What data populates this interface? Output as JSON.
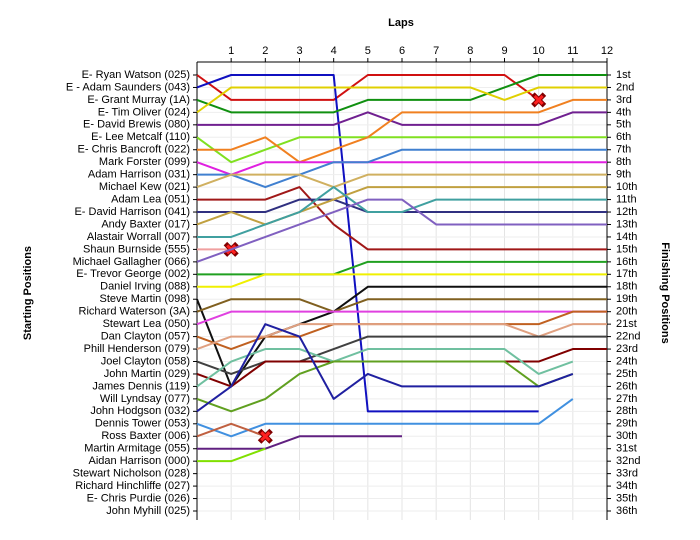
{
  "chart_data": {
    "type": "line",
    "x_label": "Laps",
    "y_label": "Starting Positions",
    "y2_label": "Finishing Positions",
    "x": [
      0,
      1,
      2,
      3,
      4,
      5,
      6,
      7,
      8,
      9,
      10,
      11,
      12
    ],
    "xlim": [
      0,
      12
    ],
    "xticks": [
      1,
      2,
      3,
      4,
      5,
      6,
      7,
      8,
      9,
      10,
      11,
      12
    ],
    "ylim": [
      1,
      36
    ],
    "grid": true,
    "finishing_positions": [
      "1st",
      "2nd",
      "3rd",
      "4th",
      "5th",
      "6th",
      "7th",
      "8th",
      "9th",
      "10th",
      "11th",
      "12th",
      "13th",
      "14th",
      "15th",
      "16th",
      "17th",
      "18th",
      "19th",
      "20th",
      "21st",
      "22nd",
      "23rd",
      "24th",
      "25th",
      "26th",
      "27th",
      "28th",
      "29th",
      "30th",
      "31st",
      "32nd",
      "33rd",
      "34th",
      "35th",
      "36th"
    ],
    "series": [
      {
        "name": "E- Ryan Watson (025)",
        "color": "#d01010",
        "retired": true,
        "values": [
          1,
          3,
          3,
          3,
          3,
          1,
          1,
          1,
          1,
          1,
          3,
          null,
          null
        ]
      },
      {
        "name": "E - Adam Saunders (043)",
        "color": "#1010c0",
        "values": [
          2,
          1,
          1,
          1,
          1,
          28,
          28,
          28,
          28,
          28,
          28,
          null,
          null
        ]
      },
      {
        "name": "E- Grant Murray (1A)",
        "color": "#109010",
        "values": [
          3,
          4,
          4,
          4,
          4,
          3,
          3,
          3,
          3,
          2,
          1,
          1,
          1
        ]
      },
      {
        "name": "E- Tim Oliver (024)",
        "color": "#e0d000",
        "values": [
          4,
          2,
          2,
          2,
          2,
          2,
          2,
          2,
          2,
          3,
          2,
          2,
          2
        ]
      },
      {
        "name": "E- David Brewis (080)",
        "color": "#702090",
        "values": [
          5,
          5,
          5,
          5,
          5,
          4,
          5,
          5,
          5,
          5,
          5,
          4,
          4
        ]
      },
      {
        "name": "E- Lee Metcalf (110)",
        "color": "#80e020",
        "values": [
          6,
          8,
          7,
          6,
          6,
          6,
          6,
          6,
          6,
          6,
          6,
          6,
          6
        ]
      },
      {
        "name": "E- Chris Bancroft (022)",
        "color": "#f08020",
        "values": [
          7,
          7,
          6,
          8,
          7,
          6,
          4,
          4,
          4,
          4,
          4,
          3,
          3
        ]
      },
      {
        "name": "Mark Forster (099)",
        "color": "#e020e0",
        "values": [
          8,
          9,
          8,
          8,
          8,
          8,
          8,
          8,
          8,
          8,
          8,
          8,
          8
        ]
      },
      {
        "name": "Adam Harrison (031)",
        "color": "#4080d0",
        "values": [
          9,
          9,
          10,
          9,
          8,
          8,
          7,
          7,
          7,
          7,
          7,
          7,
          7
        ]
      },
      {
        "name": "Michael Kew (021)",
        "color": "#d0b060",
        "values": [
          10,
          9,
          9,
          9,
          10,
          9,
          9,
          9,
          9,
          9,
          9,
          9,
          9
        ]
      },
      {
        "name": "Adam Lea (051)",
        "color": "#a01818",
        "values": [
          11,
          11,
          11,
          10,
          13,
          15,
          15,
          15,
          15,
          15,
          15,
          15,
          15
        ]
      },
      {
        "name": "E- David Harrison (041)",
        "color": "#303080",
        "values": [
          12,
          12,
          12,
          11,
          11,
          12,
          12,
          12,
          12,
          12,
          12,
          12,
          12
        ]
      },
      {
        "name": "Andy Baxter (017)",
        "color": "#c0a040",
        "values": [
          13,
          12,
          13,
          12,
          11,
          10,
          10,
          10,
          10,
          10,
          10,
          10,
          10
        ]
      },
      {
        "name": "Alastair Worrall (007)",
        "color": "#40a0a0",
        "values": [
          14,
          14,
          13,
          12,
          10,
          12,
          12,
          11,
          11,
          11,
          11,
          11,
          11
        ]
      },
      {
        "name": "Shaun Burnside (555)",
        "color": "#f0a0a0",
        "retired": true,
        "values": [
          15,
          15,
          null,
          null,
          null,
          null,
          null,
          null,
          null,
          null,
          null,
          null,
          null
        ]
      },
      {
        "name": "Michael Gallagher (066)",
        "color": "#8060c0",
        "values": [
          16,
          15,
          14,
          13,
          12,
          11,
          11,
          13,
          13,
          13,
          13,
          13,
          13
        ]
      },
      {
        "name": "E- Trevor George (002)",
        "color": "#20a020",
        "values": [
          17,
          17,
          17,
          17,
          17,
          16,
          16,
          16,
          16,
          16,
          16,
          16,
          16
        ]
      },
      {
        "name": "Daniel Irving (088)",
        "color": "#f0f000",
        "values": [
          18,
          18,
          17,
          17,
          17,
          17,
          17,
          17,
          17,
          17,
          17,
          17,
          17
        ]
      },
      {
        "name": "Steve Martin (098)",
        "color": "#101010",
        "values": [
          19,
          26,
          22,
          21,
          20,
          18,
          18,
          18,
          18,
          18,
          18,
          18,
          18
        ]
      },
      {
        "name": "Richard Waterson (3A)",
        "color": "#806020",
        "values": [
          20,
          19,
          19,
          19,
          20,
          19,
          19,
          19,
          19,
          19,
          19,
          19,
          19
        ]
      },
      {
        "name": "Stewart Lea (050)",
        "color": "#e040e0",
        "values": [
          21,
          20,
          20,
          20,
          20,
          20,
          20,
          20,
          20,
          20,
          20,
          20,
          20
        ]
      },
      {
        "name": "Dan Clayton (057)",
        "color": "#c06020",
        "values": [
          22,
          23,
          22,
          22,
          21,
          21,
          21,
          21,
          21,
          21,
          21,
          20,
          20
        ]
      },
      {
        "name": "Phill Henderson (079)",
        "color": "#e0a080",
        "values": [
          23,
          22,
          22,
          21,
          21,
          21,
          21,
          21,
          21,
          21,
          22,
          21,
          21
        ]
      },
      {
        "name": "Joel Clayton (058)",
        "color": "#404040",
        "values": [
          24,
          25,
          24,
          24,
          23,
          22,
          22,
          22,
          22,
          22,
          22,
          22,
          22
        ]
      },
      {
        "name": "John Martin (029)",
        "color": "#800000",
        "values": [
          25,
          26,
          24,
          24,
          24,
          24,
          24,
          24,
          24,
          24,
          24,
          23,
          23
        ]
      },
      {
        "name": "James Dennis (119)",
        "color": "#70c0a0",
        "values": [
          26,
          24,
          23,
          23,
          24,
          23,
          23,
          23,
          23,
          23,
          25,
          24,
          null
        ]
      },
      {
        "name": "Will Lyndsay (077)",
        "color": "#60a020",
        "values": [
          27,
          28,
          27,
          25,
          24,
          24,
          24,
          24,
          24,
          24,
          26,
          25,
          null
        ]
      },
      {
        "name": "John Hodgson (032)",
        "color": "#2020a0",
        "values": [
          28,
          26,
          21,
          22,
          27,
          25,
          26,
          26,
          26,
          26,
          26,
          25,
          null
        ]
      },
      {
        "name": "Dennis Tower (053)",
        "color": "#4090e0",
        "values": [
          29,
          30,
          29,
          29,
          29,
          29,
          29,
          29,
          29,
          29,
          29,
          27,
          null
        ]
      },
      {
        "name": "Ross Baxter (006)",
        "color": "#c06040",
        "retired": true,
        "values": [
          30,
          29,
          30,
          null,
          null,
          null,
          null,
          null,
          null,
          null,
          null,
          null,
          null
        ]
      },
      {
        "name": "Martin Armitage (055)",
        "color": "#602080",
        "values": [
          31,
          31,
          31,
          30,
          30,
          30,
          30,
          null,
          null,
          null,
          null,
          null,
          null
        ]
      },
      {
        "name": "Aidan Harrison (000)",
        "color": "#80e000",
        "values": [
          32,
          32,
          31,
          null,
          null,
          null,
          null,
          null,
          null,
          null,
          null,
          null,
          null
        ]
      },
      {
        "name": "Stewart Nicholson (028)",
        "color": "#909090",
        "values": [
          33,
          null,
          null,
          null,
          null,
          null,
          null,
          null,
          null,
          null,
          null,
          null,
          null
        ]
      },
      {
        "name": "Richard Hinchliffe (027)",
        "color": "#909090",
        "values": [
          34,
          null,
          null,
          null,
          null,
          null,
          null,
          null,
          null,
          null,
          null,
          null,
          null
        ]
      },
      {
        "name": "E- Chris Purdie (026)",
        "color": "#909090",
        "values": [
          35,
          null,
          null,
          null,
          null,
          null,
          null,
          null,
          null,
          null,
          null,
          null,
          null
        ]
      },
      {
        "name": "John Myhill (025)",
        "color": "#909090",
        "values": [
          36,
          null,
          null,
          null,
          null,
          null,
          null,
          null,
          null,
          null,
          null,
          null,
          null
        ]
      }
    ]
  }
}
